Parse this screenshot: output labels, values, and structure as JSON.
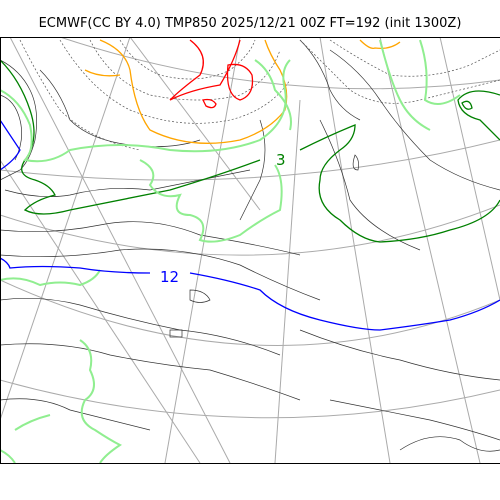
{
  "title": "ECMWF(CC BY 4.0) TMP850 2025/12/21 00Z FT=192 (init 1300Z)",
  "contour_labels": {
    "blue": "12",
    "green": "3"
  },
  "colors": {
    "red": "#ff0000",
    "orange": "#ffa500",
    "darkgreen": "#008000",
    "lightgreen": "#90ee90",
    "blue": "#0000ff",
    "coast": "#000000",
    "grid": "#aaaaaa",
    "thin": "#555555"
  }
}
